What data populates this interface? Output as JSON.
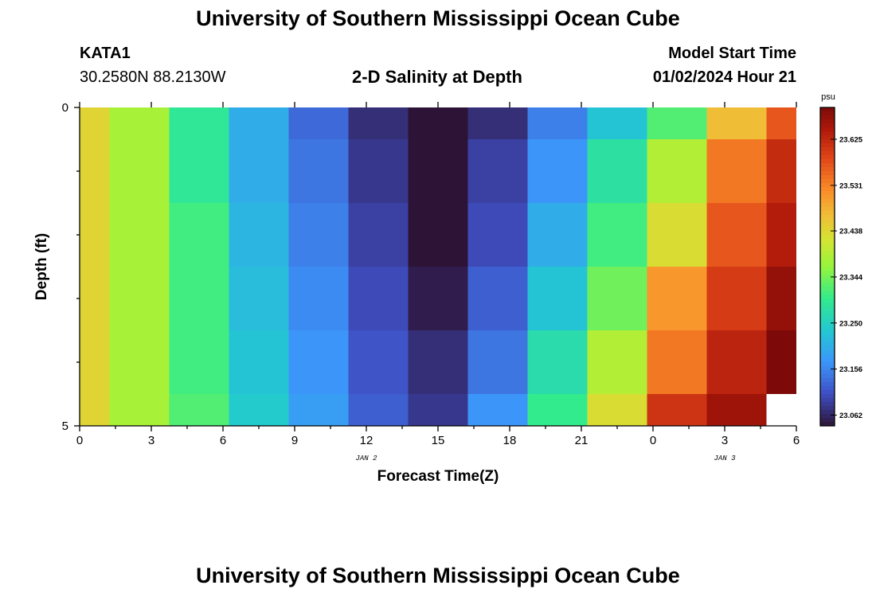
{
  "page": {
    "title": "University of Southern Mississippi Ocean Cube",
    "footer_title": "University of Southern Mississippi Ocean Cube"
  },
  "station": {
    "id": "KATA1",
    "coords": "30.2580N  88.2130W"
  },
  "model": {
    "label": "Model Start Time",
    "start": "01/02/2024 Hour 21"
  },
  "chart_data": {
    "type": "heatmap",
    "title": "2-D Salinity at Depth",
    "xlabel": "Forecast Time(Z)",
    "ylabel": "Depth (ft)",
    "x_ticks": [
      "0",
      "3",
      "6",
      "9",
      "12",
      "15",
      "18",
      "21",
      "0",
      "3",
      "6"
    ],
    "date_labels": [
      {
        "text": "JAN 2",
        "at_hour": 12
      },
      {
        "text": "JAN 3",
        "at_hour": 27
      }
    ],
    "x_range_hours": [
      0,
      30
    ],
    "y_ticks": [
      "0",
      "5"
    ],
    "y_range_ft": [
      0,
      5
    ],
    "columns_hours": [
      [
        0,
        1.25
      ],
      [
        1.25,
        3.75
      ],
      [
        3.75,
        6.25
      ],
      [
        6.25,
        8.75
      ],
      [
        8.75,
        11.25
      ],
      [
        11.25,
        13.75
      ],
      [
        13.75,
        16.25
      ],
      [
        16.25,
        18.75
      ],
      [
        18.75,
        21.25
      ],
      [
        21.25,
        23.75
      ],
      [
        23.75,
        26.25
      ],
      [
        26.25,
        28.75
      ],
      [
        28.75,
        30
      ]
    ],
    "rows_ft": [
      [
        0,
        0.5
      ],
      [
        0.5,
        1.5
      ],
      [
        1.5,
        2.5
      ],
      [
        2.5,
        3.5
      ],
      [
        3.5,
        4.5
      ],
      [
        4.5,
        5
      ]
    ],
    "values": [
      [
        23.44,
        23.38,
        23.29,
        23.2,
        23.13,
        23.07,
        23.02,
        23.07,
        23.15,
        23.23,
        23.32,
        23.47,
        23.57
      ],
      [
        23.44,
        23.38,
        23.29,
        23.2,
        23.14,
        23.08,
        23.03,
        23.09,
        23.17,
        23.28,
        23.39,
        23.54,
        23.62
      ],
      [
        23.44,
        23.38,
        23.31,
        23.21,
        23.15,
        23.09,
        23.04,
        23.1,
        23.2,
        23.31,
        23.43,
        23.57,
        23.64
      ],
      [
        23.44,
        23.38,
        23.31,
        23.22,
        23.16,
        23.1,
        23.05,
        23.12,
        23.23,
        23.34,
        23.51,
        23.6,
        23.67
      ],
      [
        23.44,
        23.38,
        23.31,
        23.23,
        23.17,
        23.11,
        23.07,
        23.14,
        23.27,
        23.39,
        23.54,
        23.63,
        23.72
      ],
      [
        23.44,
        23.38,
        23.32,
        23.24,
        23.18,
        23.12,
        23.08,
        23.17,
        23.3,
        23.43,
        23.61,
        23.66,
        null
      ]
    ],
    "colorbar": {
      "unit": "psu",
      "min": 23.04,
      "max": 23.69,
      "ticks": [
        "23.625",
        "23.531",
        "23.438",
        "23.344",
        "23.250",
        "23.156",
        "23.062"
      ]
    }
  }
}
